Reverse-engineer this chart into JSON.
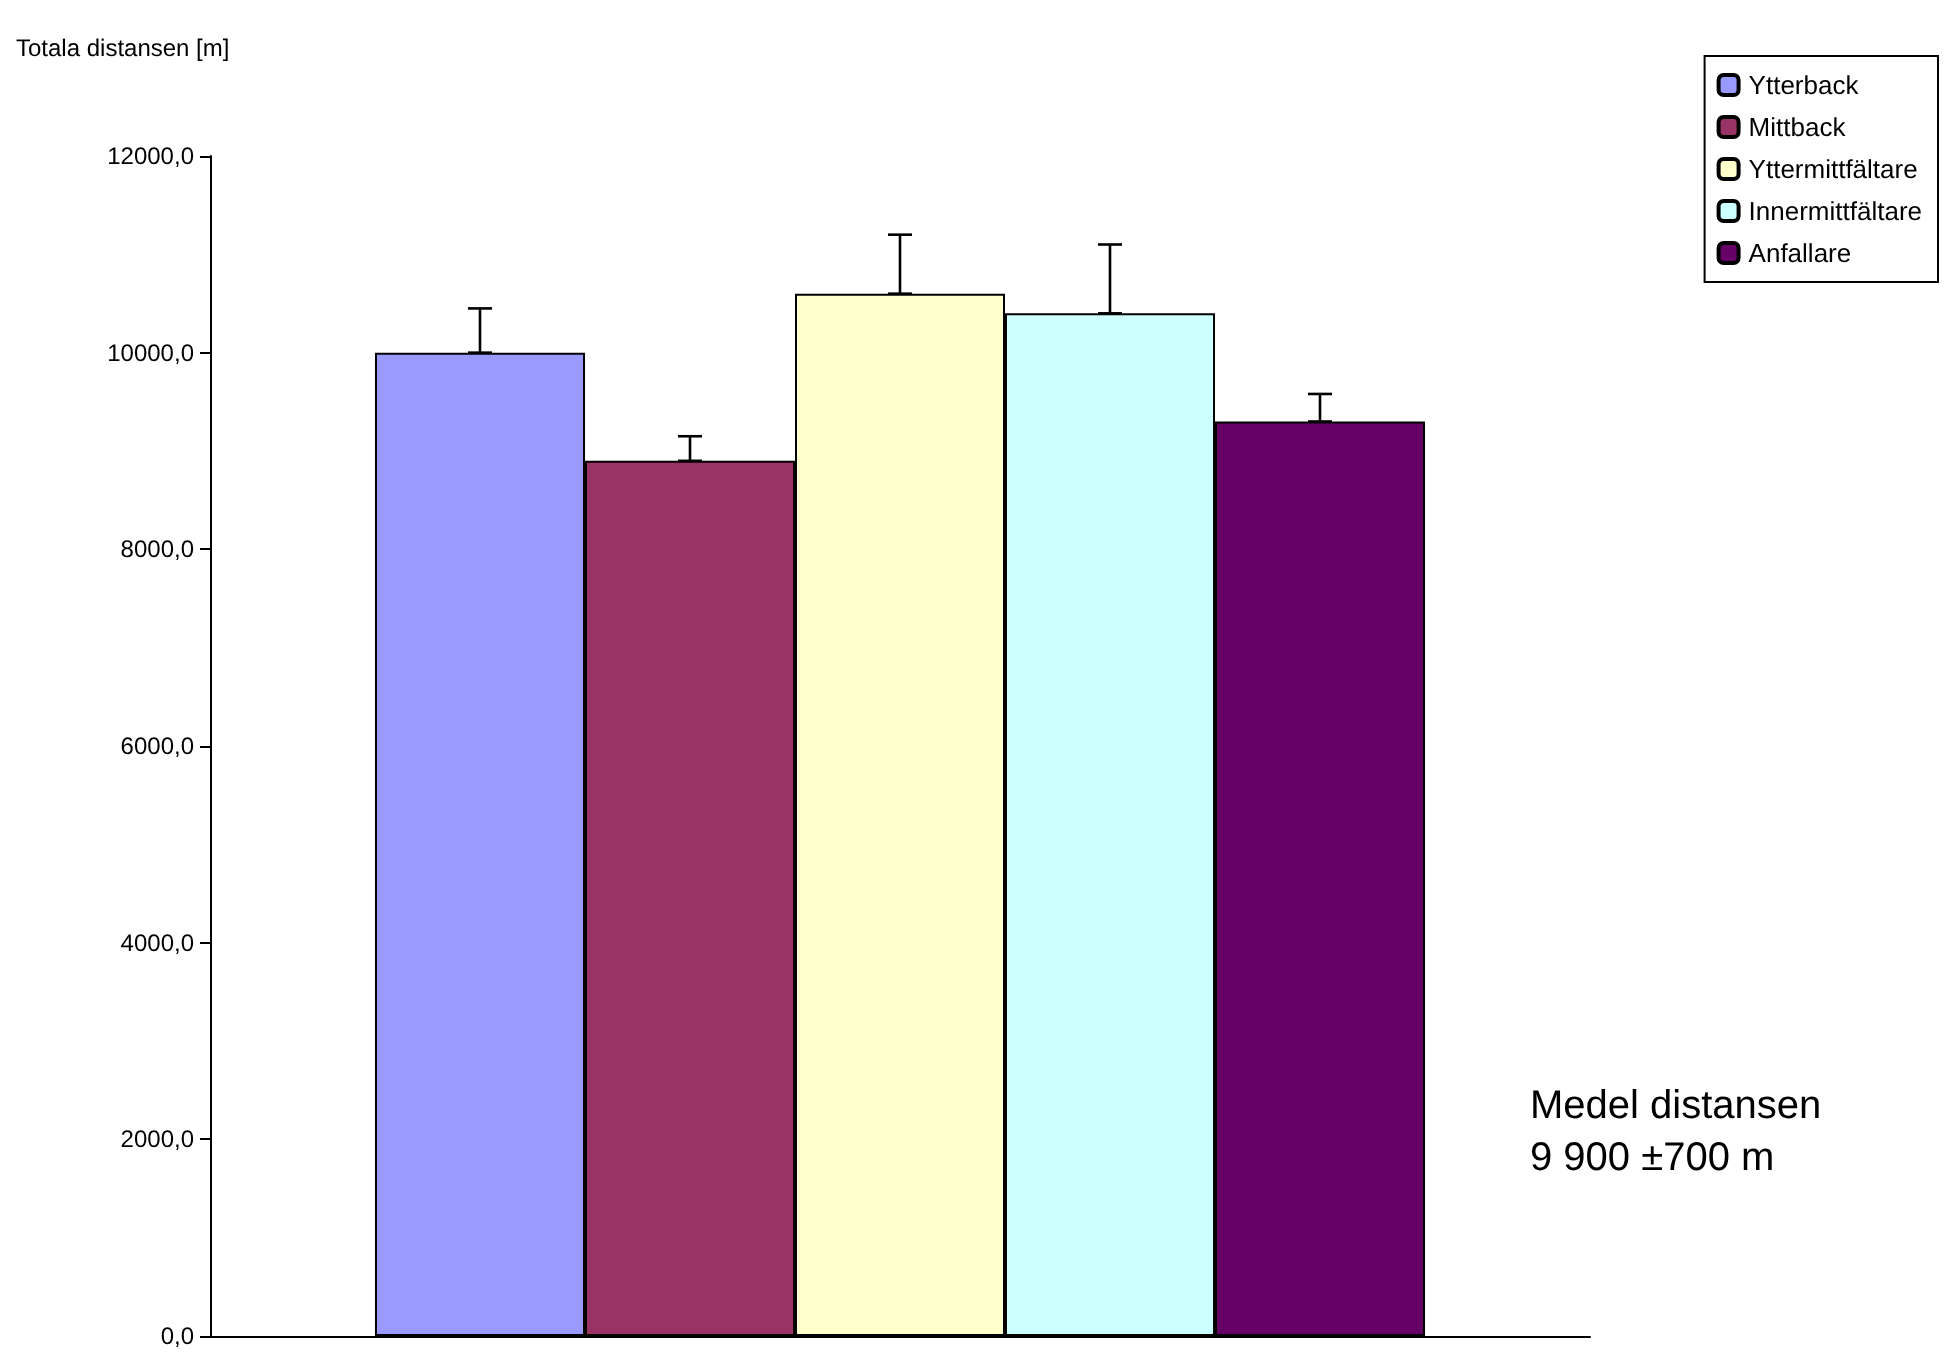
{
  "chart_data": {
    "type": "bar",
    "ylabel": "Totala distansen [m]",
    "categories": [
      null
    ],
    "series": [
      {
        "name": "Ytterback",
        "color": "#9999ff",
        "values": [
          10000
        ],
        "errors": [
          [
            10000,
            10450
          ]
        ]
      },
      {
        "name": "Mittback",
        "color": "#993366",
        "values": [
          8900
        ],
        "errors": [
          [
            8900,
            9150
          ]
        ]
      },
      {
        "name": "Yttermittfältare",
        "color": "#ffffcc",
        "values": [
          10600
        ],
        "errors": [
          [
            10600,
            11200
          ]
        ]
      },
      {
        "name": "Innermittfältare",
        "color": "#ccffff",
        "values": [
          10400
        ],
        "errors": [
          [
            10400,
            11100
          ]
        ]
      },
      {
        "name": "Anfallare",
        "color": "#660066",
        "values": [
          9300
        ],
        "errors": [
          [
            9300,
            9580
          ]
        ]
      }
    ],
    "ylim": [
      0,
      12000
    ],
    "yticks": [
      {
        "value": 0,
        "label": "0,0"
      },
      {
        "value": 2000,
        "label": "2000,0"
      },
      {
        "value": 4000,
        "label": "4000,0"
      },
      {
        "value": 6000,
        "label": "6000,0"
      },
      {
        "value": 8000,
        "label": "8000,0"
      },
      {
        "value": 10000,
        "label": "10000,0"
      },
      {
        "value": 12000,
        "label": "12000,0"
      }
    ],
    "annotations": [
      "Medel distansen\n9 900 ±700 m"
    ],
    "grid": false,
    "legend": "top right"
  }
}
